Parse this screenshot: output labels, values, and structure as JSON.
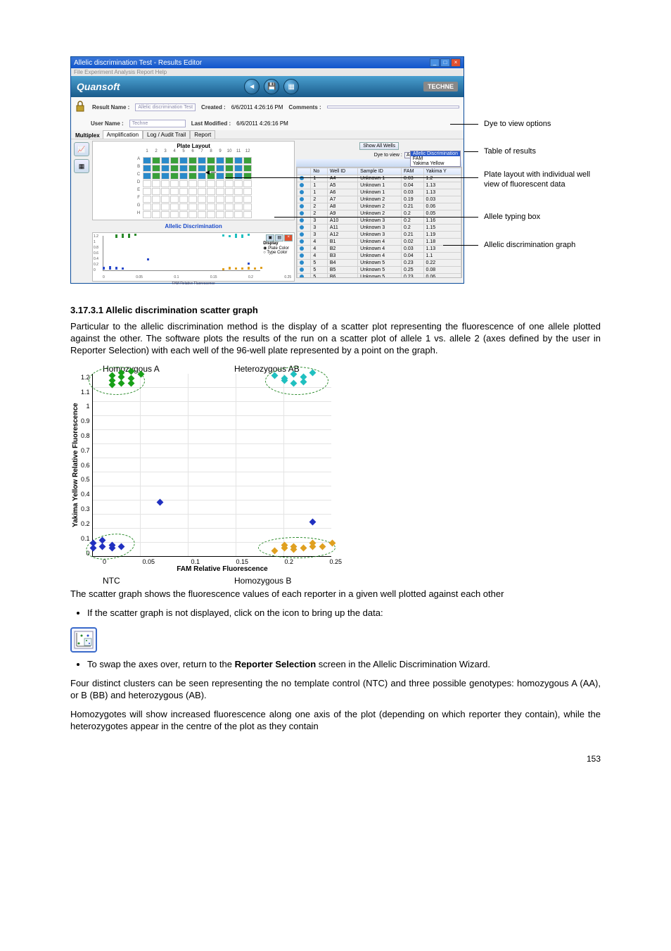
{
  "app": {
    "title": "Allelic discrimination Test - Results Editor",
    "menu": "File   Experiment   Analysis   Report   Help",
    "brand": "Quansoft",
    "brand_right": "TECHNE",
    "meta": {
      "result_name_label": "Result Name :",
      "result_name": "Allelic discrimination Test",
      "created_label": "Created :",
      "created": "6/6/2011 4:26:16 PM",
      "user_label": "User Name :",
      "user": "Techne",
      "modified_label": "Last Modified :",
      "modified": "6/6/2011 4:26:16 PM",
      "comments_label": "Comments :"
    },
    "tabs": {
      "label": "Multiplex",
      "t1": "Amplification",
      "t2": "Log / Audit Trail",
      "t3": "Report"
    },
    "show_wells": "Show All\nWells",
    "plate_title": "Plate Layout",
    "allele_title": "Allelic Discrimination",
    "mini_display": "Display",
    "mini_opt1": "Plate Color",
    "mini_opt2": "Type Color",
    "mini_xlabel": "FAM Relative Fluorescence",
    "mini_x_ticks": [
      "0",
      "0.05",
      "0.1",
      "0.15",
      "0.2",
      "0.25"
    ],
    "mini_y_ticks": [
      "1.2",
      "1",
      "0.8",
      "0.6",
      "0.4",
      "0.2",
      "0"
    ],
    "dye_label": "Dye to view :",
    "dye_value": "Allelic Discrimination",
    "dye_opts": [
      "Allelic Discrimination",
      "FAM",
      "Yakima Yellow"
    ],
    "results_label": "Results",
    "close_x": "×",
    "table": {
      "cols": [
        "",
        "No",
        "Well ID",
        "Sample ID",
        "FAM",
        "Yakima Y"
      ],
      "rows": [
        [
          "1",
          "A4",
          "Unknown 1",
          "0.03",
          "1.2"
        ],
        [
          "1",
          "A5",
          "Unknown 1",
          "0.04",
          "1.13"
        ],
        [
          "1",
          "A6",
          "Unknown 1",
          "0.03",
          "1.13"
        ],
        [
          "2",
          "A7",
          "Unknown 2",
          "0.19",
          "0.03"
        ],
        [
          "2",
          "A8",
          "Unknown 2",
          "0.21",
          "0.06"
        ],
        [
          "2",
          "A9",
          "Unknown 2",
          "0.2",
          "0.05"
        ],
        [
          "3",
          "A10",
          "Unknown 3",
          "0.2",
          "1.16"
        ],
        [
          "3",
          "A11",
          "Unknown 3",
          "0.2",
          "1.15"
        ],
        [
          "3",
          "A12",
          "Unknown 3",
          "0.21",
          "1.19"
        ],
        [
          "4",
          "B1",
          "Unknown 4",
          "0.02",
          "1.18"
        ],
        [
          "4",
          "B2",
          "Unknown 4",
          "0.03",
          "1.13"
        ],
        [
          "4",
          "B3",
          "Unknown 4",
          "0.04",
          "1.1"
        ],
        [
          "5",
          "B4",
          "Unknown 5",
          "0.23",
          "0.22"
        ],
        [
          "5",
          "B5",
          "Unknown 5",
          "0.25",
          "0.08"
        ],
        [
          "5",
          "B6",
          "Unknown 5",
          "0.23",
          "0.06"
        ]
      ]
    }
  },
  "annots": {
    "a1": "Dye to view options",
    "a2": "Table of results",
    "a3a": "Plate layout with individual well",
    "a3b": "view of fluorescent data",
    "a4": "Allele typing box",
    "a5": "Allelic discrimination graph"
  },
  "section": {
    "heading": "3.17.3.1  Allelic discrimination scatter graph",
    "p1": "Particular to the allelic discrimination method is the display of a scatter plot representing the fluorescence of one allele plotted against the other. The software plots the results of the run on a scatter plot of allele 1 vs. allele 2 (axes defined by the user in Reporter Selection) with each well of the 96-well plate represented by a point on the graph.",
    "top_left": "Homozygous A",
    "top_right": "Heterozygous AB",
    "bot_left": "NTC",
    "bot_right": "Homozygous B",
    "xlabel": "FAM Relative Fluorescence",
    "ylabel": "Yakima Yellow Relative Fluorescence",
    "x_ticks": [
      "0",
      "0.05",
      "0.1",
      "0.15",
      "0.2",
      "0.25"
    ],
    "y_ticks": [
      "1.2",
      "1.1",
      "1",
      "0.9",
      "0.8",
      "0.7",
      "0.6",
      "0.5",
      "0.4",
      "0.3",
      "0.2",
      "0.1",
      "0"
    ],
    "p2": "The scatter graph shows the fluorescence values of each reporter in a given well plotted against each other",
    "li1": "If the scatter graph is not displayed, click on the icon to bring up the data:",
    "li2a": "To swap the axes over, return to the ",
    "li2b": "Reporter Selection",
    "li2c": " screen in the Allelic Discrimination Wizard.",
    "p3": "Four distinct clusters can be seen representing the no template control (NTC) and three possible genotypes: homozygous A (AA), or B (BB) and heterozygous (AB).",
    "p4": "Homozygotes will show increased fluorescence along one axis of the plot (depending on which reporter they contain), while the heterozygotes appear in the centre of the plot as they contain"
  },
  "colors": {
    "green": "#18a018",
    "blue": "#2030c0",
    "cyan": "#20c0c0",
    "orange": "#e0a020"
  },
  "scatter2": {
    "xlim": [
      0,
      0.25
    ],
    "ylim": [
      0,
      1.2
    ],
    "homA": [
      [
        0.02,
        1.18
      ],
      [
        0.03,
        1.2
      ],
      [
        0.03,
        1.13
      ],
      [
        0.04,
        1.13
      ],
      [
        0.02,
        1.15
      ],
      [
        0.04,
        1.16
      ],
      [
        0.03,
        1.17
      ],
      [
        0.05,
        1.19
      ],
      [
        0.04,
        1.21
      ],
      [
        0.02,
        1.12
      ]
    ],
    "hetAB": [
      [
        0.2,
        1.16
      ],
      [
        0.2,
        1.15
      ],
      [
        0.21,
        1.19
      ],
      [
        0.22,
        1.17
      ],
      [
        0.21,
        1.13
      ],
      [
        0.19,
        1.18
      ],
      [
        0.23,
        1.2
      ],
      [
        0.22,
        1.14
      ]
    ],
    "homB": [
      [
        0.19,
        0.03
      ],
      [
        0.21,
        0.06
      ],
      [
        0.2,
        0.05
      ],
      [
        0.23,
        0.08
      ],
      [
        0.25,
        0.08
      ],
      [
        0.23,
        0.06
      ],
      [
        0.21,
        0.04
      ],
      [
        0.2,
        0.07
      ],
      [
        0.22,
        0.05
      ],
      [
        0.24,
        0.06
      ]
    ],
    "ntc": [
      [
        0.0,
        0.08
      ],
      [
        0.0,
        0.05
      ],
      [
        0.01,
        0.06
      ],
      [
        0.02,
        0.07
      ],
      [
        0.02,
        0.05
      ],
      [
        0.03,
        0.06
      ],
      [
        0.01,
        0.1
      ]
    ],
    "stray": [
      [
        0.07,
        0.35
      ],
      [
        0.23,
        0.22
      ]
    ]
  },
  "pagenum": "153"
}
